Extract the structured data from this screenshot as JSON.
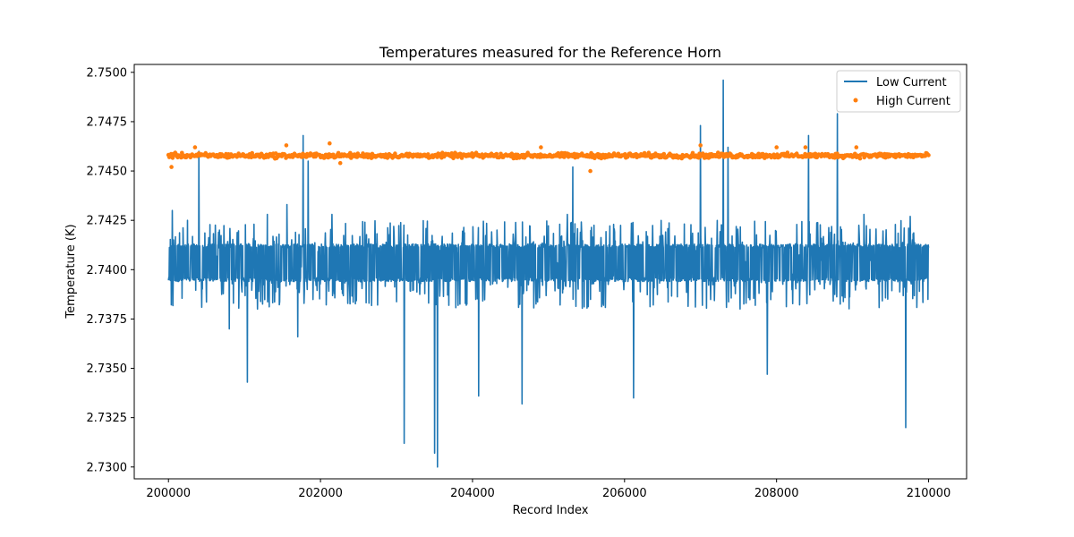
{
  "chart_data": {
    "type": "line",
    "title": "Temperatures measured for the Reference Horn",
    "xlabel": "Record Index",
    "ylabel": "Temperature (K)",
    "xlim": [
      199550,
      210500
    ],
    "ylim": [
      2.7294,
      2.7504
    ],
    "xticks": [
      200000,
      202000,
      204000,
      206000,
      208000,
      210000
    ],
    "xtick_labels": [
      "200000",
      "202000",
      "204000",
      "206000",
      "208000",
      "210000"
    ],
    "yticks": [
      2.73,
      2.7325,
      2.735,
      2.7375,
      2.74,
      2.7425,
      2.745,
      2.7475,
      2.75
    ],
    "ytick_labels": [
      "2.7300",
      "2.7325",
      "2.7350",
      "2.7375",
      "2.7400",
      "2.7425",
      "2.7450",
      "2.7475",
      "2.7500"
    ],
    "grid": false,
    "legend_position": "top-right",
    "series": [
      {
        "name": "Low Current",
        "kind": "line",
        "color": "#1f77b4",
        "x_range": [
          200000,
          210000
        ],
        "baseline_low": 2.7394,
        "baseline_high": 2.7413,
        "spikes": [
          {
            "x": 200050,
            "y": 2.743
          },
          {
            "x": 200400,
            "y": 2.746
          },
          {
            "x": 200800,
            "y": 2.737
          },
          {
            "x": 201040,
            "y": 2.7343
          },
          {
            "x": 201300,
            "y": 2.7428
          },
          {
            "x": 201560,
            "y": 2.7433
          },
          {
            "x": 201700,
            "y": 2.7366
          },
          {
            "x": 201770,
            "y": 2.7468
          },
          {
            "x": 201840,
            "y": 2.7455
          },
          {
            "x": 202150,
            "y": 2.7428
          },
          {
            "x": 203100,
            "y": 2.7312
          },
          {
            "x": 203500,
            "y": 2.7307
          },
          {
            "x": 203540,
            "y": 2.73
          },
          {
            "x": 204080,
            "y": 2.7336
          },
          {
            "x": 204650,
            "y": 2.7332
          },
          {
            "x": 205250,
            "y": 2.7428
          },
          {
            "x": 205320,
            "y": 2.7452
          },
          {
            "x": 206120,
            "y": 2.7335
          },
          {
            "x": 207000,
            "y": 2.7473
          },
          {
            "x": 207300,
            "y": 2.7496
          },
          {
            "x": 207360,
            "y": 2.7462
          },
          {
            "x": 207880,
            "y": 2.7347
          },
          {
            "x": 208420,
            "y": 2.7468
          },
          {
            "x": 208800,
            "y": 2.7479
          },
          {
            "x": 209150,
            "y": 2.7428
          },
          {
            "x": 209700,
            "y": 2.732
          },
          {
            "x": 209760,
            "y": 2.7427
          }
        ]
      },
      {
        "name": "High Current",
        "kind": "scatter",
        "color": "#ff7f0e",
        "x_range": [
          200000,
          210000
        ],
        "center": 2.74578,
        "spread": 0.00018,
        "outliers": [
          {
            "x": 200040,
            "y": 2.7452
          },
          {
            "x": 200350,
            "y": 2.7462
          },
          {
            "x": 201550,
            "y": 2.7463
          },
          {
            "x": 202120,
            "y": 2.7464
          },
          {
            "x": 202260,
            "y": 2.7454
          },
          {
            "x": 204900,
            "y": 2.7462
          },
          {
            "x": 205550,
            "y": 2.745
          },
          {
            "x": 207000,
            "y": 2.7463
          },
          {
            "x": 208000,
            "y": 2.7462
          },
          {
            "x": 208380,
            "y": 2.7462
          },
          {
            "x": 209050,
            "y": 2.7462
          }
        ]
      }
    ]
  }
}
